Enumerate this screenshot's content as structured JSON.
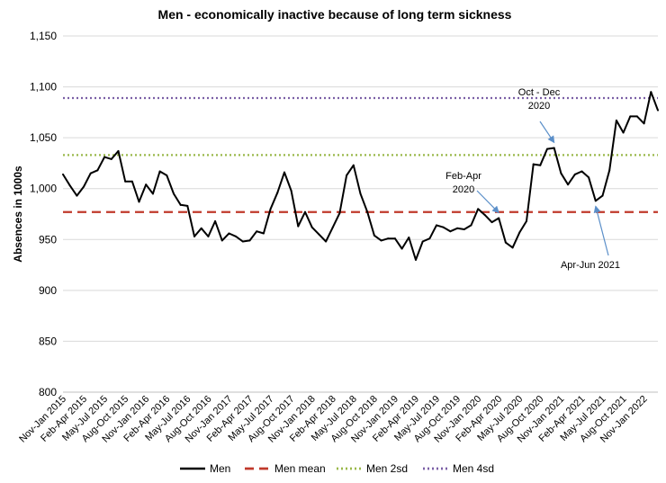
{
  "chart_data": {
    "type": "line",
    "title": "Men - economically inactive because of long term sickness",
    "xlabel": "",
    "ylabel": "Absences in 1000s",
    "ylim": [
      800,
      1150
    ],
    "yticks": [
      800,
      850,
      900,
      950,
      1000,
      1050,
      1100,
      1150
    ],
    "ytick_labels": [
      "800",
      "850",
      "900",
      "950",
      "1,000",
      "1,050",
      "1,100",
      "1,150"
    ],
    "grid": "horizontal",
    "legend_position": "bottom",
    "x_tick_labels": [
      "Nov-Jan 2015",
      "Feb-Apr 2015",
      "May-Jul 2015",
      "Aug-Oct 2015",
      "Nov-Jan 2016",
      "Feb-Apr 2016",
      "May-Jul 2016",
      "Aug-Oct 2016",
      "Nov-Jan 2017",
      "Feb-Apr 2017",
      "May-Jul 2017",
      "Aug-Oct 2017",
      "Nov-Jan 2018",
      "Feb-Apr 2018",
      "May-Jul 2018",
      "Aug-Oct 2018",
      "Nov-Jan 2019",
      "Feb-Apr 2019",
      "May-Jul 2019",
      "Aug-Oct 2019",
      "Nov-Jan 2020",
      "Feb-Apr 2020",
      "May-Jul 2020",
      "Aug-Oct 2020",
      "Nov-Jan 2021",
      "Feb-Apr 2021",
      "May-Jul 2021",
      "Aug-Oct 2021",
      "Nov-Jan 2022"
    ],
    "series": [
      {
        "name": "Men",
        "color": "#000000",
        "style": "solid",
        "values": [
          1014,
          1003,
          993,
          1002,
          1015,
          1018,
          1031,
          1029,
          1037,
          1007,
          1007,
          987,
          1004,
          995,
          1017,
          1013,
          995,
          984,
          983,
          953,
          961,
          953,
          968,
          949,
          956,
          953,
          948,
          949,
          958,
          956,
          980,
          996,
          1016,
          998,
          963,
          977,
          962,
          955,
          948,
          962,
          976,
          1013,
          1023,
          995,
          977,
          954,
          949,
          951,
          951,
          941,
          952,
          930,
          948,
          951,
          964,
          962,
          958,
          961,
          960,
          964,
          980,
          974,
          967,
          971,
          947,
          942,
          957,
          968,
          1024,
          1023,
          1039,
          1040,
          1015,
          1004,
          1014,
          1017,
          1011,
          988,
          993,
          1018,
          1067,
          1055,
          1071,
          1071,
          1064,
          1095,
          1077
        ]
      },
      {
        "name": "Men mean",
        "color": "#c0392b",
        "style": "dashed",
        "value": 977
      },
      {
        "name": "Men 2sd",
        "color": "#9ab84a",
        "style": "dotted",
        "value": 1033
      },
      {
        "name": "Men 4sd",
        "color": "#7b5fa6",
        "style": "dotted",
        "value": 1089
      }
    ],
    "annotations": [
      {
        "lines": [
          "Oct - Dec",
          "2020"
        ],
        "point_index": 71
      },
      {
        "lines": [
          "Feb-Apr",
          "2020"
        ],
        "point_index": 63
      },
      {
        "lines": [
          "Apr-Jun 2021"
        ],
        "point_index": 77
      }
    ]
  }
}
